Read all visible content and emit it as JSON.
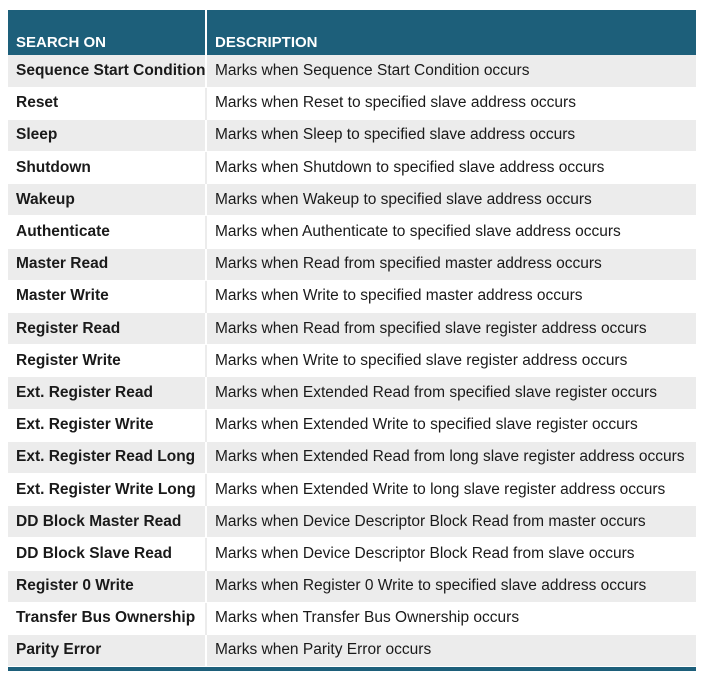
{
  "table": {
    "headers": [
      "SEARCH ON",
      "DESCRIPTION"
    ],
    "rows": [
      [
        "Sequence Start Condition",
        "Marks when Sequence Start Condition occurs"
      ],
      [
        "Reset",
        "Marks when Reset to specified slave address occurs"
      ],
      [
        "Sleep",
        "Marks when Sleep to specified slave address occurs"
      ],
      [
        "Shutdown",
        "Marks when Shutdown to specified slave address occurs"
      ],
      [
        "Wakeup",
        "Marks when Wakeup to specified slave address occurs"
      ],
      [
        "Authenticate",
        "Marks when Authenticate to specified slave address occurs"
      ],
      [
        "Master Read",
        "Marks when Read from specified master address occurs"
      ],
      [
        "Master Write",
        "Marks when Write to specified master address occurs"
      ],
      [
        "Register Read",
        "Marks when Read from specified slave register address occurs"
      ],
      [
        "Register Write",
        "Marks when Write to specified slave register address occurs"
      ],
      [
        "Ext. Register Read",
        "Marks when Extended Read from specified slave register occurs"
      ],
      [
        "Ext. Register Write",
        "Marks when Extended Write to specified slave register occurs"
      ],
      [
        "Ext. Register Read Long",
        "Marks when Extended Read from long slave register address occurs"
      ],
      [
        "Ext. Register Write Long",
        "Marks when Extended Write to long slave register address occurs"
      ],
      [
        "DD Block Master Read",
        "Marks when Device Descriptor Block Read from master occurs"
      ],
      [
        "DD Block Slave Read",
        "Marks when Device Descriptor Block Read from slave occurs"
      ],
      [
        "Register 0 Write",
        "Marks when Register 0 Write to specified slave address occurs"
      ],
      [
        "Transfer Bus Ownership",
        "Marks when Transfer Bus Ownership occurs"
      ],
      [
        "Parity Error",
        "Marks when Parity Error occurs"
      ]
    ]
  },
  "colors": {
    "header_bg": "#1d5f7a",
    "stripe_bg": "#ececec"
  }
}
